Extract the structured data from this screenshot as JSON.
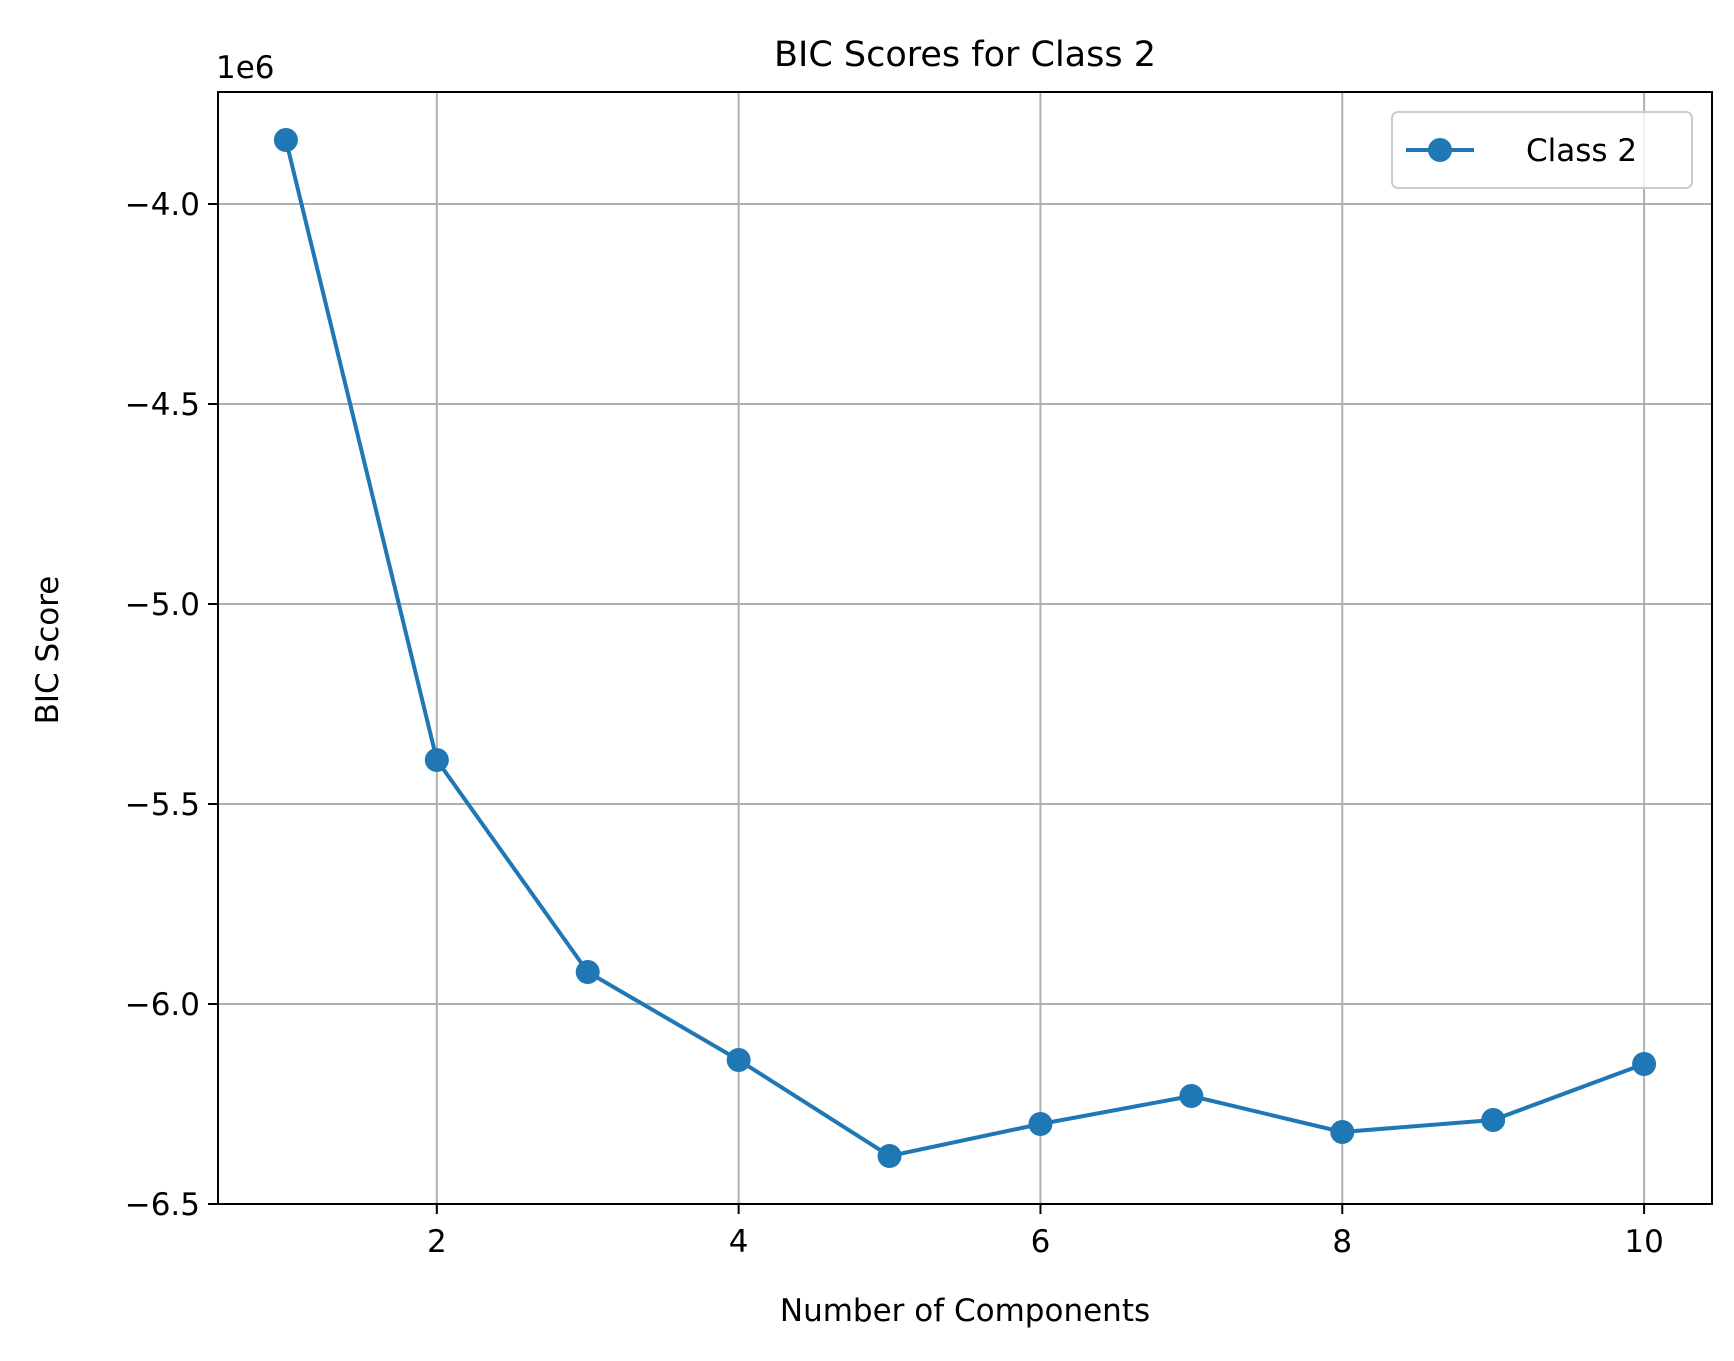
{
  "chart_data": {
    "type": "line",
    "title": "BIC Scores for Class 2",
    "xlabel": "Number of Components",
    "ylabel": "BIC Score",
    "y_offset_label": "1e6",
    "y_scale": 1000000,
    "xlim": [
      0.55,
      10.45
    ],
    "ylim": [
      -6.5,
      -3.72
    ],
    "x_ticks": [
      2,
      4,
      6,
      8,
      10
    ],
    "x_tick_labels": [
      "2",
      "4",
      "6",
      "8",
      "10"
    ],
    "y_ticks": [
      -6.5,
      -6.0,
      -5.5,
      -5.0,
      -4.5,
      -4.0
    ],
    "y_tick_labels": [
      "−6.5",
      "−6.0",
      "−5.5",
      "−5.0",
      "−4.5",
      "−4.0"
    ],
    "grid": true,
    "legend_position": "top-right",
    "series": [
      {
        "name": "Class 2",
        "color": "#1f77b4",
        "marker": "circle",
        "x": [
          1,
          2,
          3,
          4,
          5,
          6,
          7,
          8,
          9,
          10
        ],
        "y": [
          -3.84,
          -5.39,
          -5.92,
          -6.14,
          -6.38,
          -6.3,
          -6.23,
          -6.32,
          -6.29,
          -6.15
        ]
      }
    ]
  }
}
